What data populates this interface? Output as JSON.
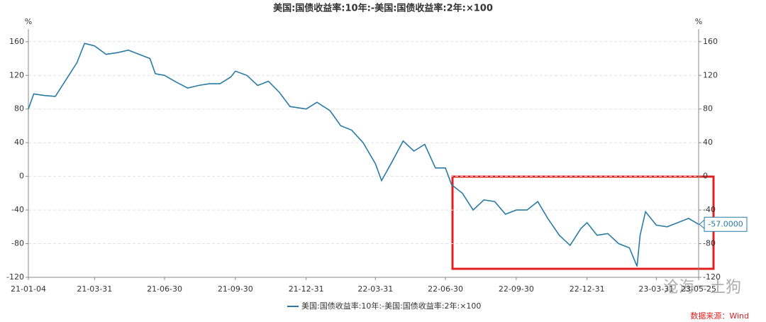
{
  "chart_data": {
    "type": "line",
    "title": "美国:国债收益率:10年:-美国:国债收益率:2年:×100",
    "y_unit": "%",
    "y2_unit": "%",
    "x": [
      "21-01-04",
      "21-01-11",
      "21-01-25",
      "21-02-08",
      "21-02-22",
      "21-03-08",
      "21-03-18",
      "21-03-31",
      "21-04-15",
      "21-04-30",
      "21-05-14",
      "21-05-28",
      "21-06-11",
      "21-06-18",
      "21-06-30",
      "21-07-15",
      "21-07-30",
      "21-08-13",
      "21-08-27",
      "21-09-10",
      "21-09-24",
      "21-09-30",
      "21-10-15",
      "21-10-29",
      "21-11-12",
      "21-11-26",
      "21-12-10",
      "21-12-31",
      "22-01-14",
      "22-01-31",
      "22-02-14",
      "22-02-28",
      "22-03-15",
      "22-03-31",
      "22-04-08",
      "22-04-22",
      "22-05-06",
      "22-05-20",
      "22-06-03",
      "22-06-17",
      "22-06-30",
      "22-07-08",
      "22-07-22",
      "22-08-05",
      "22-08-19",
      "22-09-02",
      "22-09-16",
      "22-09-30",
      "22-10-14",
      "22-10-28",
      "22-11-10",
      "22-11-25",
      "22-12-09",
      "22-12-23",
      "22-12-31",
      "23-01-13",
      "23-01-27",
      "23-02-10",
      "23-02-24",
      "23-03-06",
      "23-03-10",
      "23-03-17",
      "23-03-31",
      "23-04-14",
      "23-04-28",
      "23-05-12",
      "23-05-25"
    ],
    "series": [
      {
        "name": "美国:国债收益率:10年:-美国:国债收益率:2年:×100",
        "color": "#2a7ba3",
        "values": [
          80,
          98,
          96,
          95,
          115,
          135,
          158,
          155,
          145,
          147,
          150,
          145,
          140,
          122,
          120,
          112,
          105,
          108,
          110,
          110,
          118,
          125,
          120,
          108,
          113,
          100,
          83,
          80,
          88,
          78,
          60,
          55,
          40,
          15,
          -5,
          18,
          42,
          30,
          38,
          10,
          10,
          -10,
          -20,
          -40,
          -28,
          -30,
          -45,
          -40,
          -40,
          -30,
          -50,
          -70,
          -82,
          -62,
          -55,
          -70,
          -68,
          -80,
          -85,
          -107,
          -70,
          -42,
          -58,
          -60,
          -55,
          -50,
          -57
        ]
      }
    ],
    "xlim": [
      "21-01-04",
      "23-05-25"
    ],
    "xticks": [
      "21-01-04",
      "21-03-31",
      "21-06-30",
      "21-09-30",
      "21-12-31",
      "22-03-31",
      "22-06-30",
      "22-09-30",
      "22-12-31",
      "23-03-31",
      "23-05-25"
    ],
    "ylim": [
      -120,
      175
    ],
    "yticks": [
      -120,
      -80,
      -40,
      0,
      40,
      80,
      120,
      160
    ],
    "y2lim": [
      -120,
      175
    ],
    "y2ticks": [
      -120,
      -80,
      -40,
      0,
      40,
      80,
      120,
      160
    ],
    "grid": true,
    "last_value_label": "-57.0000",
    "watermark": "沧海一土狗",
    "source": "数据来源：Wind"
  }
}
